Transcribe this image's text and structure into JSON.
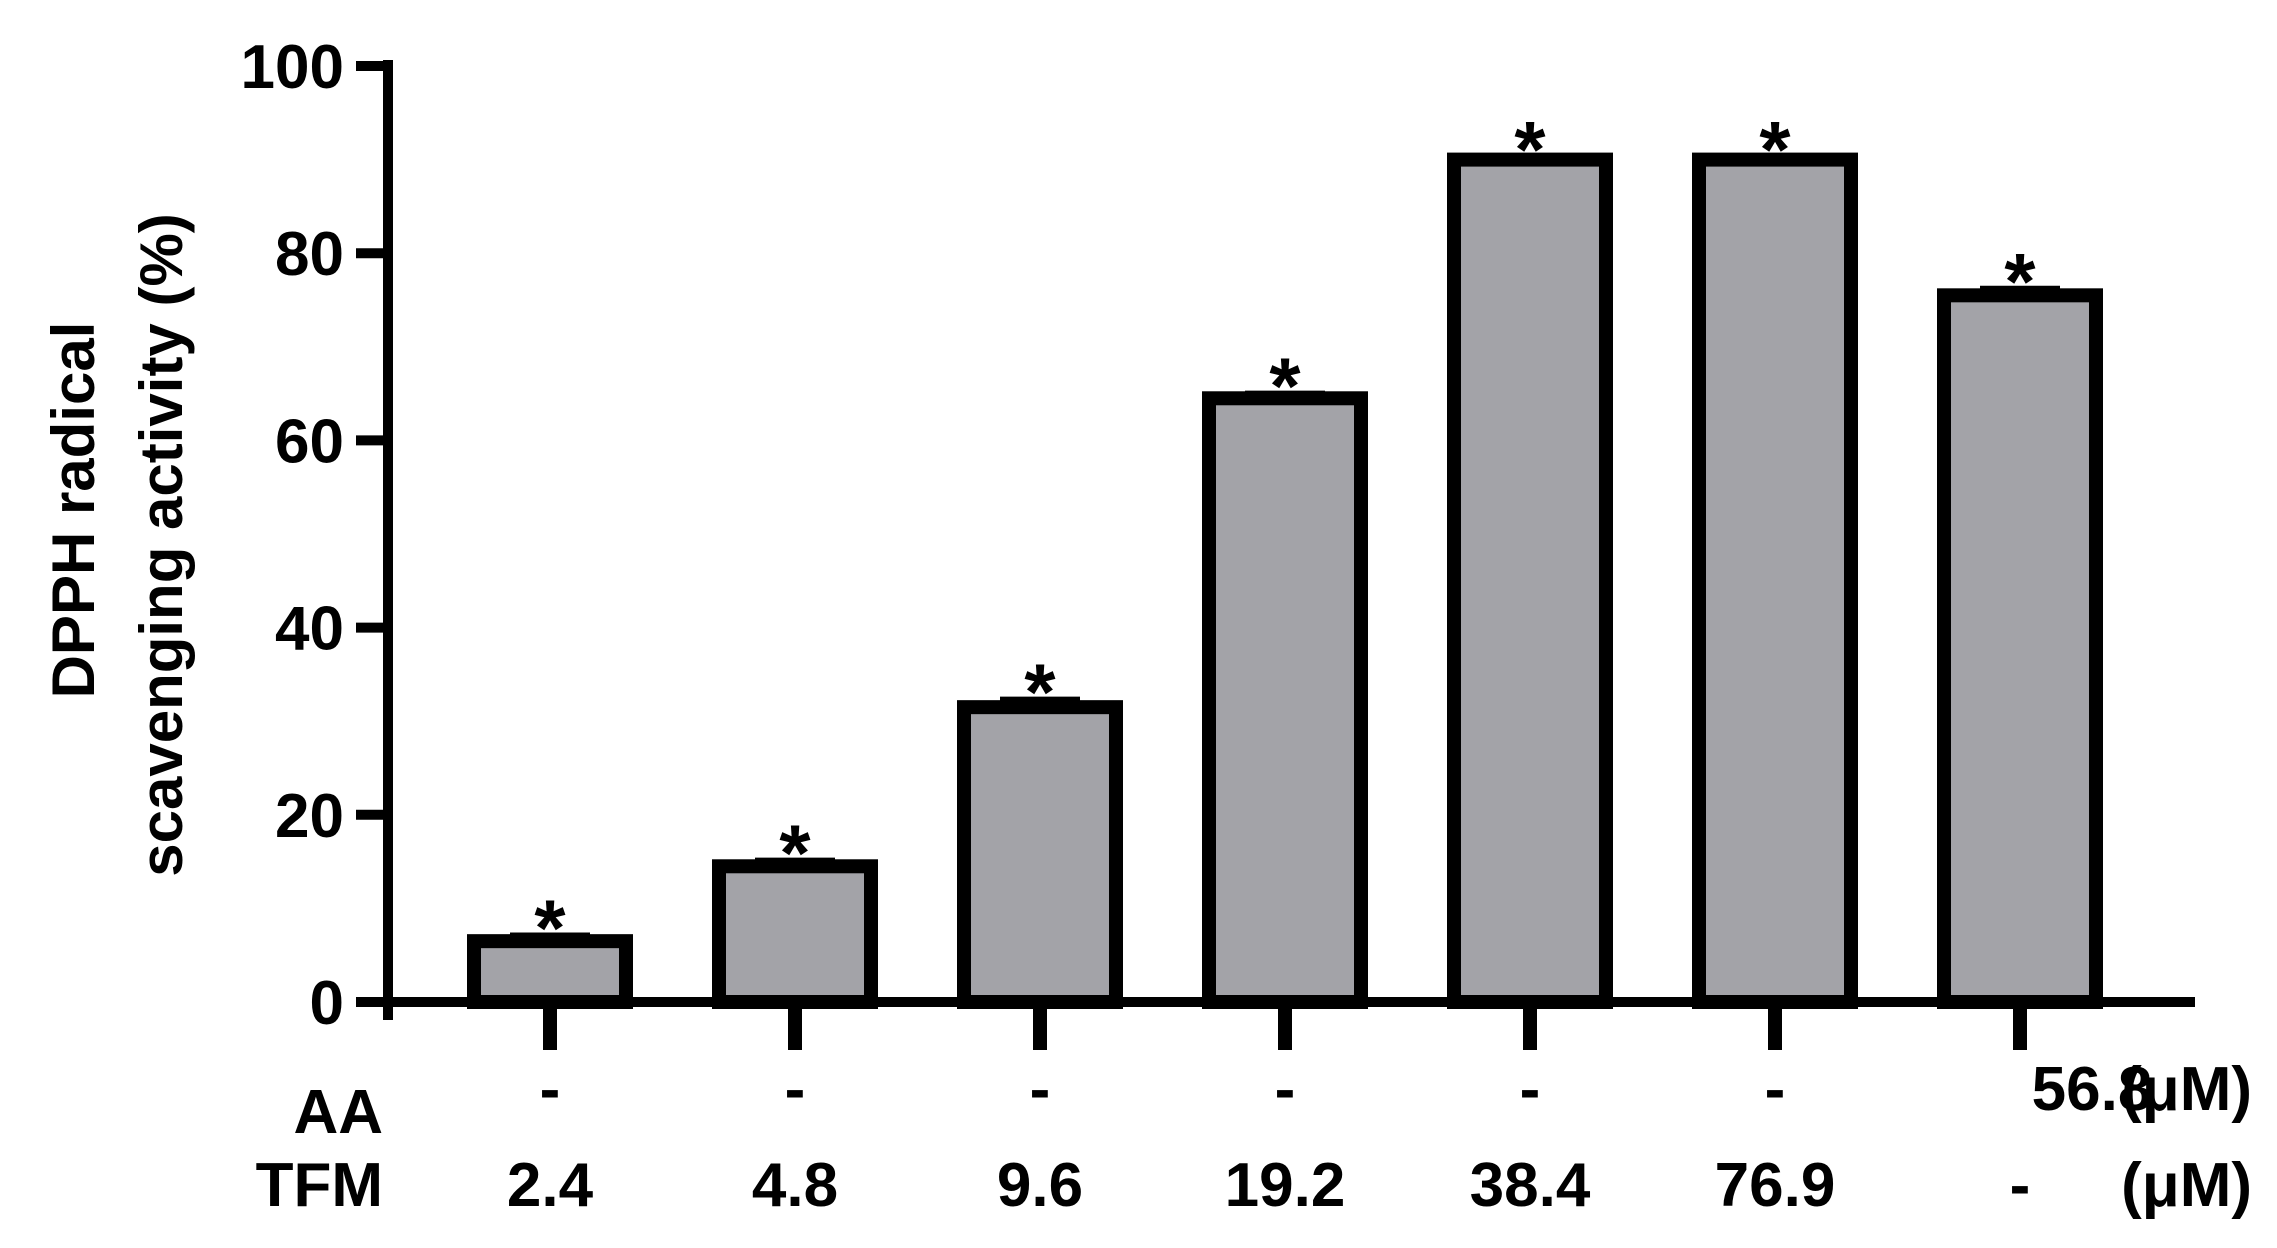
{
  "colors": {
    "bar_fill": "#a3a3a8",
    "bar_stroke": "#000000",
    "axis": "#000000",
    "background": "#ffffff"
  },
  "chart_data": {
    "type": "bar",
    "title": "",
    "xlabel": "",
    "ylabel_line1": "DPPH radical",
    "ylabel_line2": "scavenging activity (%)",
    "ylim": [
      0,
      100
    ],
    "yticks": [
      "0",
      "20",
      "40",
      "60",
      "80",
      "100"
    ],
    "yticks_values": [
      0,
      20,
      40,
      60,
      80,
      100
    ],
    "grid": false,
    "legend": "none",
    "row_labels": {
      "aa": "AA",
      "tfm": "TFM"
    },
    "unit_label": "(μM)",
    "categories": [
      {
        "aa": "-",
        "tfm": "2.4"
      },
      {
        "aa": "-",
        "tfm": "4.8"
      },
      {
        "aa": "-",
        "tfm": "9.6"
      },
      {
        "aa": "-",
        "tfm": "19.2"
      },
      {
        "aa": "-",
        "tfm": "38.4"
      },
      {
        "aa": "-",
        "tfm": "76.9"
      },
      {
        "aa": "56.8",
        "tfm": "-"
      }
    ],
    "values": [
      6.5,
      14.5,
      31.5,
      64.5,
      90,
      90,
      75.5
    ],
    "errors": [
      0.6,
      0.6,
      0.8,
      0.5,
      0.3,
      0.3,
      0.7
    ],
    "significance": [
      "*",
      "*",
      "*",
      "*",
      "*",
      "*",
      "*"
    ]
  }
}
